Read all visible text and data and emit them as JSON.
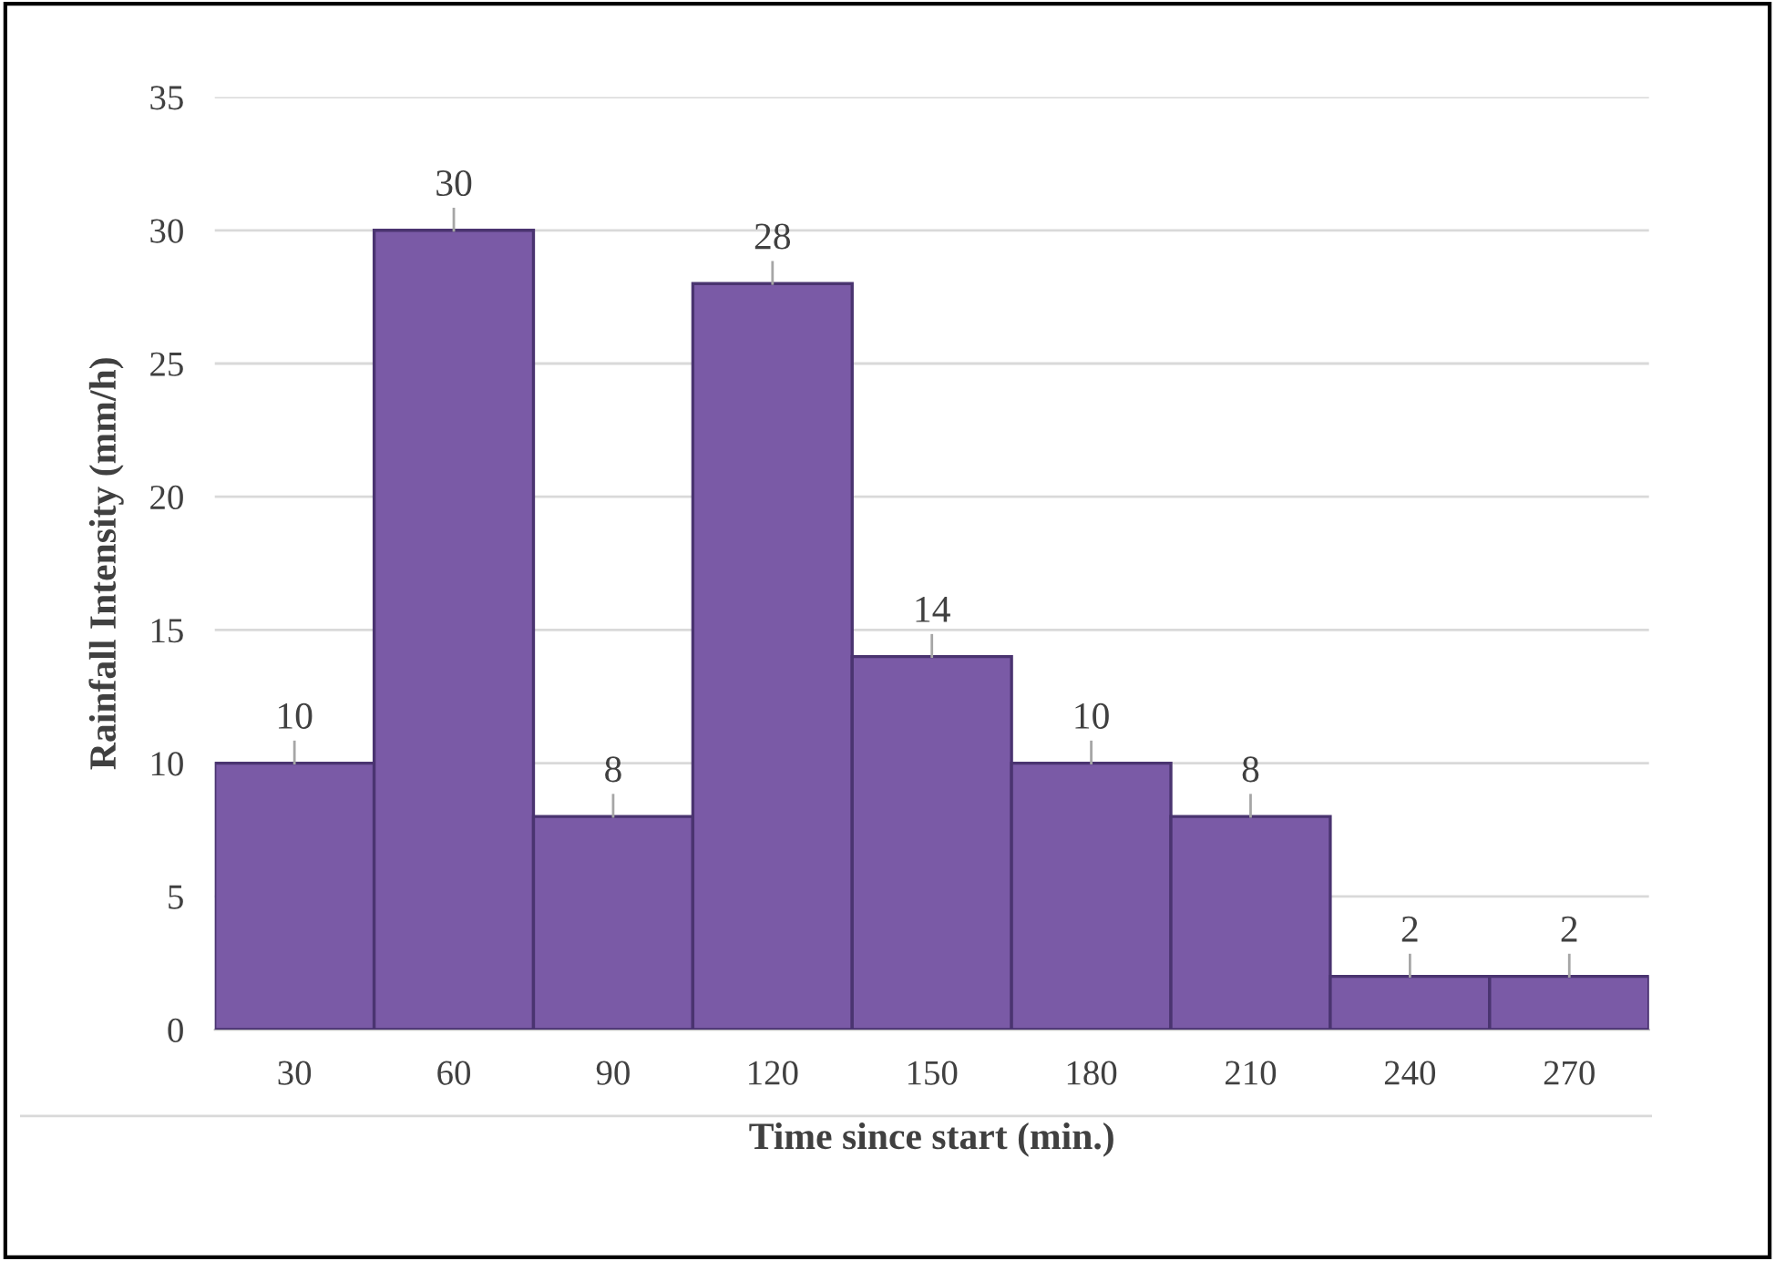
{
  "chart_data": {
    "type": "bar",
    "xlabel": "Time since start (min.)",
    "ylabel": "Rainfall Intensity (mm/h)",
    "categories": [
      "30",
      "60",
      "90",
      "120",
      "150",
      "180",
      "210",
      "240",
      "270"
    ],
    "values": [
      10,
      30,
      8,
      28,
      14,
      10,
      8,
      2,
      2
    ],
    "color": "#7a5aa6",
    "ylim": [
      0,
      35
    ],
    "yticks": [
      0,
      5,
      10,
      15,
      20,
      25,
      30,
      35
    ],
    "grid": "y",
    "data_labels": true
  }
}
